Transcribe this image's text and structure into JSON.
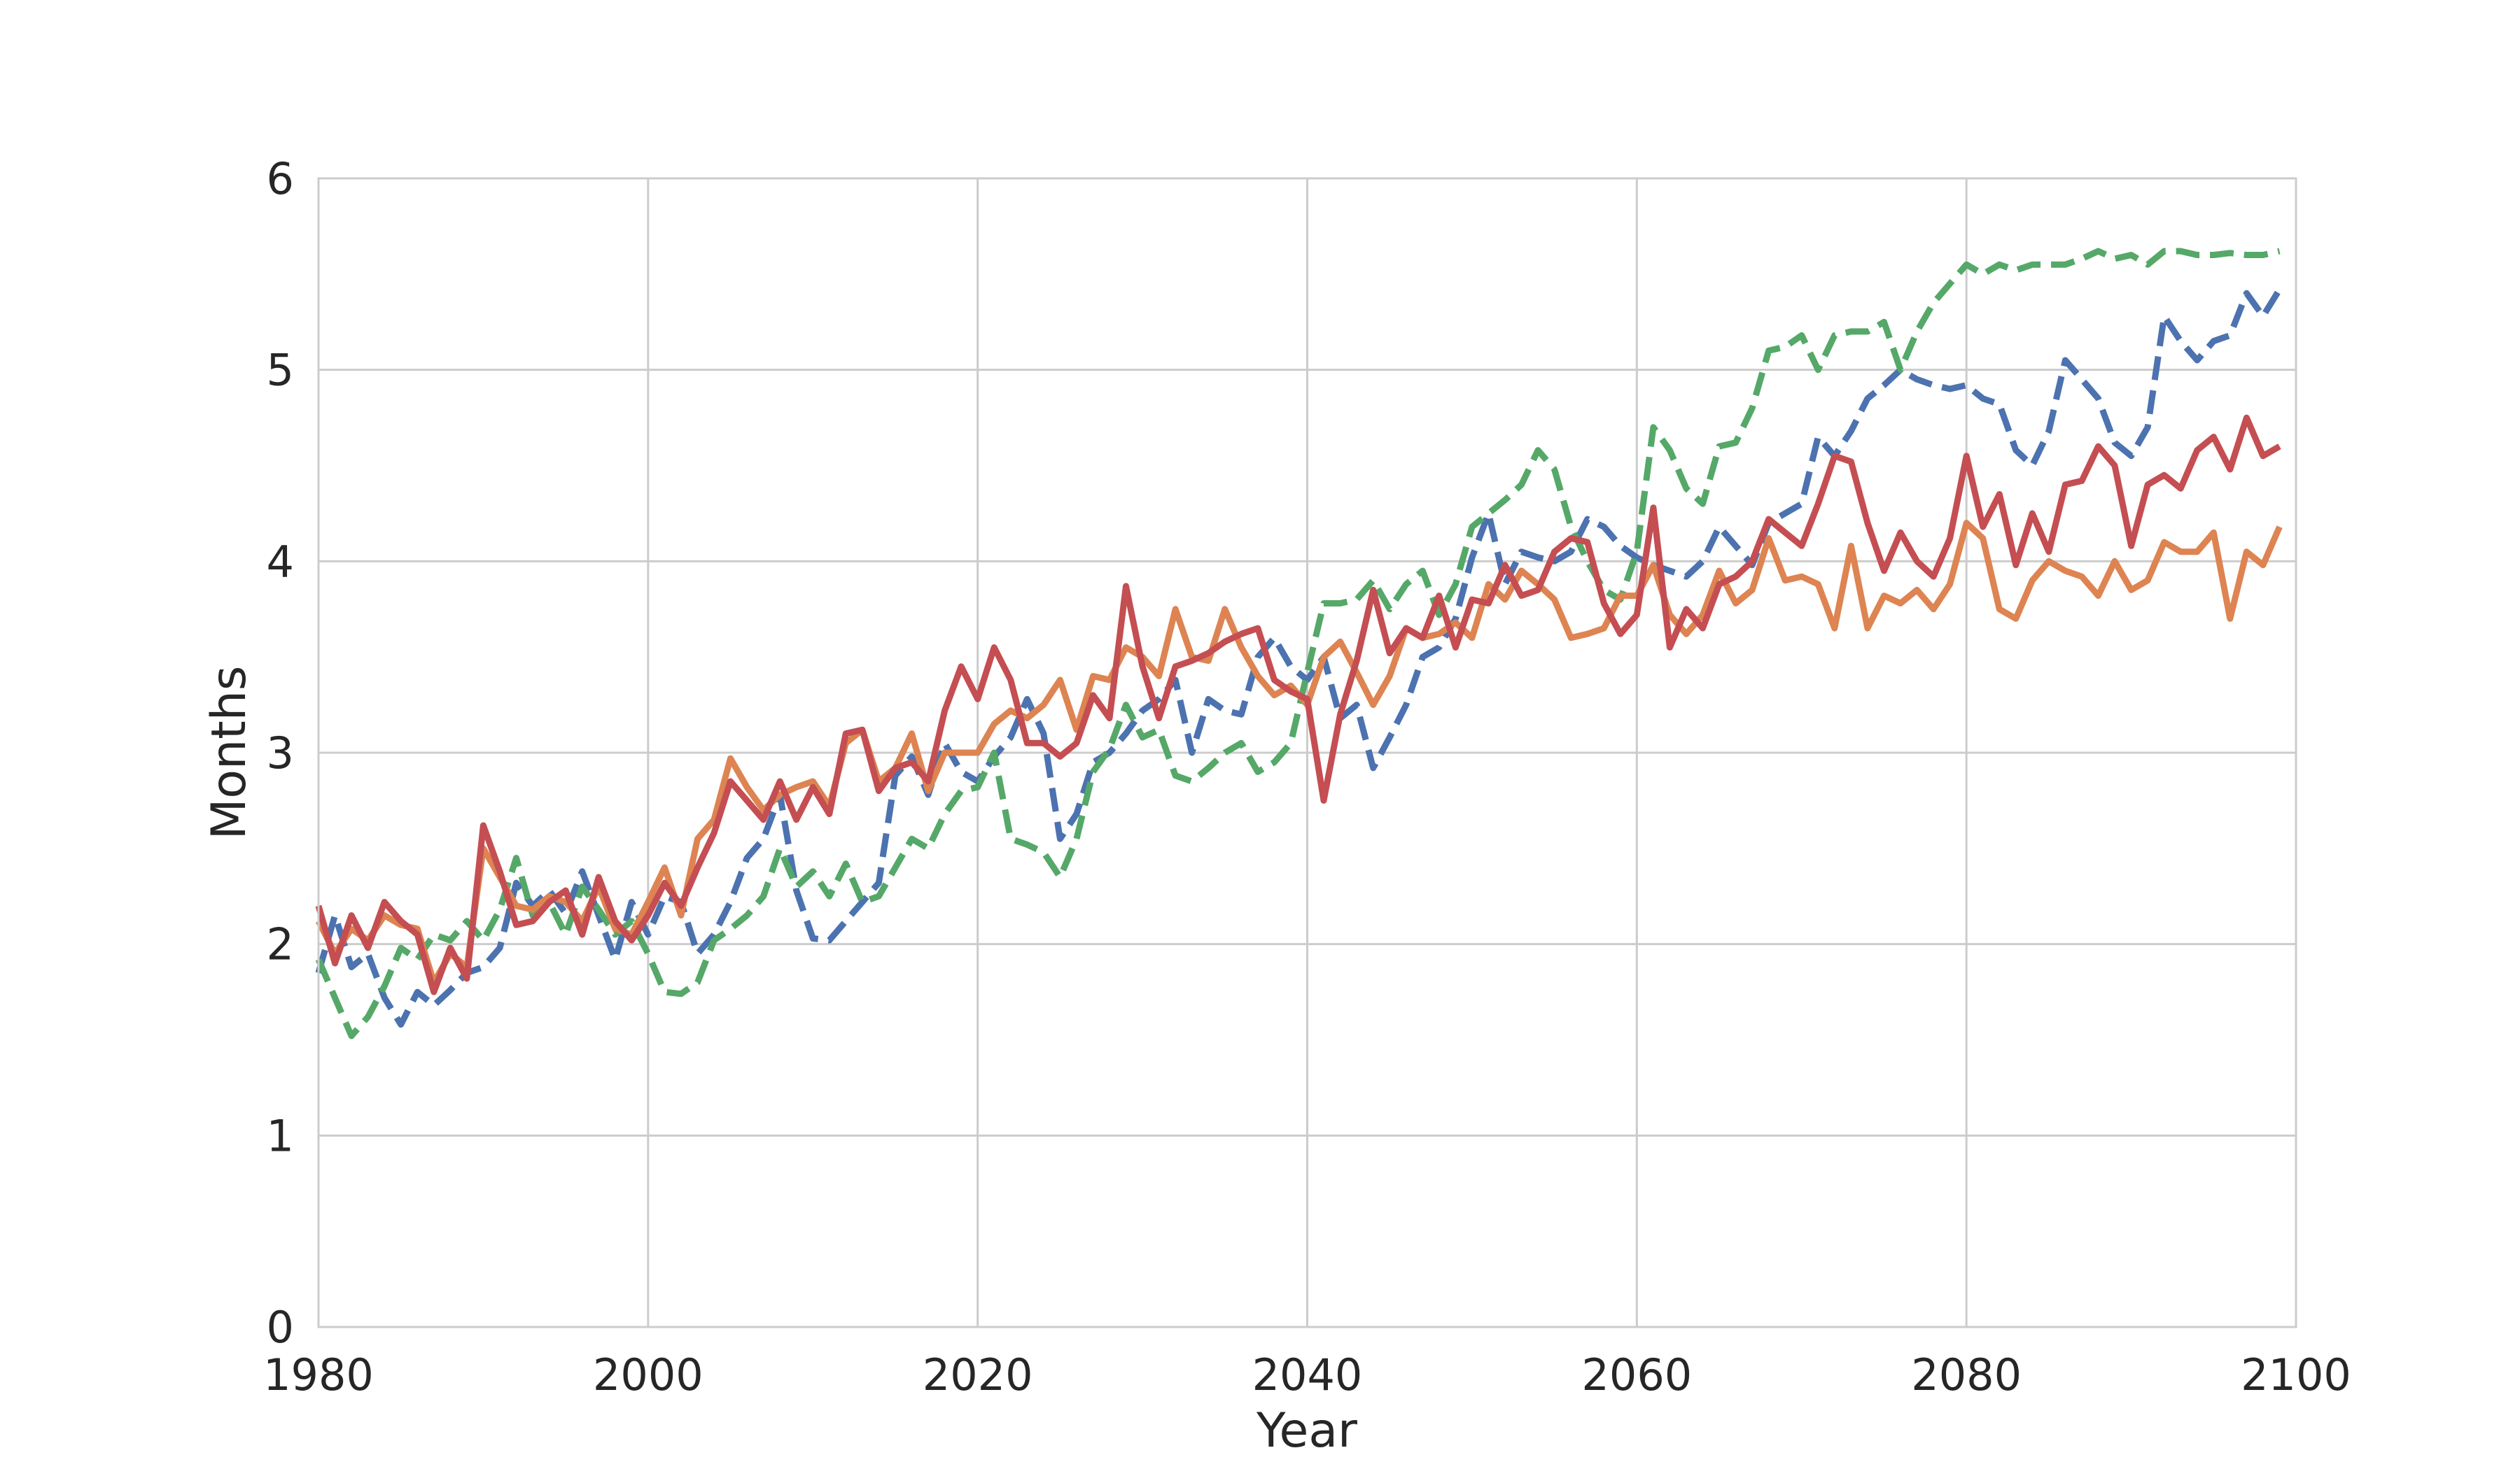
{
  "chart_data": {
    "type": "line",
    "title": "",
    "xlabel": "Year",
    "ylabel": "Months",
    "xlim": [
      1980,
      2100
    ],
    "ylim": [
      0,
      6
    ],
    "xticks": [
      1980,
      2000,
      2020,
      2040,
      2060,
      2080,
      2100
    ],
    "yticks": [
      0,
      1,
      2,
      3,
      4,
      5,
      6
    ],
    "xtick_labels": [
      "1980",
      "2000",
      "2020",
      "2040",
      "2060",
      "2080",
      "2100"
    ],
    "ytick_labels": [
      "0",
      "1",
      "2",
      "3",
      "4",
      "5",
      "6"
    ],
    "grid": true,
    "legend": "none",
    "series": [
      {
        "color": "#4c72b0",
        "style": "dashed",
        "x": [
          1980,
          1981,
          1982,
          1983,
          1984,
          1985,
          1986,
          1987,
          1988,
          1989,
          1990,
          1991,
          1992,
          1993,
          1994,
          1995,
          1996,
          1997,
          1998,
          1999,
          2000,
          2001,
          2002,
          2003,
          2004,
          2005,
          2006,
          2007,
          2008,
          2009,
          2010,
          2011,
          2012,
          2013,
          2014,
          2015,
          2016,
          2017,
          2018,
          2019,
          2020,
          2021,
          2022,
          2023,
          2024,
          2025,
          2026,
          2027,
          2028,
          2029,
          2030,
          2031,
          2032,
          2033,
          2034,
          2035,
          2036,
          2037,
          2038,
          2039,
          2040,
          2041,
          2042,
          2043,
          2044,
          2045,
          2046,
          2047,
          2048,
          2049,
          2050,
          2051,
          2052,
          2053,
          2054,
          2055,
          2056,
          2057,
          2058,
          2059,
          2060,
          2061,
          2062,
          2063,
          2064,
          2065,
          2066,
          2067,
          2068,
          2069,
          2070,
          2071,
          2072,
          2073,
          2074,
          2075,
          2076,
          2077,
          2078,
          2079,
          2080,
          2081,
          2082,
          2083,
          2084,
          2085,
          2086,
          2087,
          2088,
          2089,
          2090,
          2091,
          2092,
          2093,
          2094,
          2095,
          2096,
          2097,
          2098,
          2099
        ],
        "y": [
          1.85,
          2.15,
          1.88,
          1.95,
          1.72,
          1.58,
          1.75,
          1.68,
          1.76,
          1.85,
          1.88,
          1.98,
          2.32,
          2.2,
          2.28,
          2.16,
          2.38,
          2.15,
          1.92,
          2.22,
          2.05,
          2.25,
          2.22,
          1.95,
          2.05,
          2.22,
          2.45,
          2.55,
          2.78,
          2.28,
          2.03,
          2.02,
          2.12,
          2.22,
          2.32,
          2.88,
          2.98,
          2.78,
          3.05,
          2.9,
          2.85,
          2.98,
          3.08,
          3.28,
          3.1,
          2.55,
          2.68,
          2.95,
          3.0,
          3.1,
          3.22,
          3.28,
          3.38,
          3.0,
          3.28,
          3.22,
          3.2,
          3.5,
          3.6,
          3.45,
          3.38,
          3.5,
          3.18,
          3.25,
          2.92,
          3.08,
          3.25,
          3.5,
          3.55,
          3.7,
          4.02,
          4.25,
          3.88,
          4.05,
          4.02,
          4.0,
          4.05,
          4.22,
          4.18,
          4.08,
          4.02,
          3.98,
          3.95,
          3.92,
          4.0,
          4.18,
          4.08,
          3.98,
          4.2,
          4.25,
          4.3,
          4.65,
          4.55,
          4.68,
          4.85,
          4.92,
          5.0,
          4.95,
          4.92,
          4.9,
          4.92,
          4.85,
          4.82,
          4.58,
          4.5,
          4.68,
          5.05,
          4.95,
          4.85,
          4.62,
          4.55,
          4.7,
          5.28,
          5.15,
          5.05,
          5.15,
          5.18,
          5.4,
          5.28,
          5.42
        ]
      },
      {
        "color": "#55a868",
        "style": "dashed",
        "x": [
          1980,
          1981,
          1982,
          1983,
          1984,
          1985,
          1986,
          1987,
          1988,
          1989,
          1990,
          1991,
          1992,
          1993,
          1994,
          1995,
          1996,
          1997,
          1998,
          1999,
          2000,
          2001,
          2002,
          2003,
          2004,
          2005,
          2006,
          2007,
          2008,
          2009,
          2010,
          2011,
          2012,
          2013,
          2014,
          2015,
          2016,
          2017,
          2018,
          2019,
          2020,
          2021,
          2022,
          2023,
          2024,
          2025,
          2026,
          2027,
          2028,
          2029,
          2030,
          2031,
          2032,
          2033,
          2034,
          2035,
          2036,
          2037,
          2038,
          2039,
          2040,
          2041,
          2042,
          2043,
          2044,
          2045,
          2046,
          2047,
          2048,
          2049,
          2050,
          2051,
          2052,
          2053,
          2054,
          2055,
          2056,
          2057,
          2058,
          2059,
          2060,
          2061,
          2062,
          2063,
          2064,
          2065,
          2066,
          2067,
          2068,
          2069,
          2070,
          2071,
          2072,
          2073,
          2074,
          2075,
          2076,
          2077,
          2078,
          2079,
          2080,
          2081,
          2082,
          2083,
          2084,
          2085,
          2086,
          2087,
          2088,
          2089,
          2090,
          2091,
          2092,
          2093,
          2094,
          2095,
          2096,
          2097,
          2098,
          2099
        ],
        "y": [
          1.92,
          1.72,
          1.52,
          1.62,
          1.78,
          1.98,
          1.92,
          2.05,
          2.02,
          2.12,
          2.02,
          2.18,
          2.45,
          2.15,
          2.22,
          2.05,
          2.3,
          2.18,
          2.05,
          2.12,
          1.95,
          1.75,
          1.74,
          1.8,
          2.02,
          2.08,
          2.15,
          2.25,
          2.5,
          2.3,
          2.38,
          2.25,
          2.42,
          2.22,
          2.25,
          2.4,
          2.55,
          2.5,
          2.68,
          2.8,
          2.82,
          3.0,
          2.55,
          2.52,
          2.48,
          2.35,
          2.55,
          2.9,
          3.02,
          3.25,
          3.08,
          3.12,
          2.88,
          2.85,
          2.92,
          3.0,
          3.05,
          2.9,
          2.95,
          3.05,
          3.42,
          3.78,
          3.78,
          3.8,
          3.9,
          3.75,
          3.88,
          3.95,
          3.72,
          3.88,
          4.18,
          4.25,
          4.32,
          4.4,
          4.58,
          4.48,
          4.18,
          4.0,
          3.85,
          3.8,
          4.05,
          4.7,
          4.58,
          4.38,
          4.3,
          4.6,
          4.62,
          4.8,
          5.1,
          5.12,
          5.18,
          5.0,
          5.18,
          5.2,
          5.2,
          5.25,
          5.0,
          5.2,
          5.35,
          5.45,
          5.55,
          5.5,
          5.55,
          5.52,
          5.55,
          5.55,
          5.55,
          5.58,
          5.62,
          5.58,
          5.6,
          5.55,
          5.62,
          5.62,
          5.6,
          5.6,
          5.61,
          5.6,
          5.6,
          5.62
        ]
      },
      {
        "color": "#dd8452",
        "style": "solid",
        "x": [
          1980,
          1981,
          1982,
          1983,
          1984,
          1985,
          1986,
          1987,
          1988,
          1989,
          1990,
          1991,
          1992,
          1993,
          1994,
          1995,
          1996,
          1997,
          1998,
          1999,
          2000,
          2001,
          2002,
          2003,
          2004,
          2005,
          2006,
          2007,
          2008,
          2009,
          2010,
          2011,
          2012,
          2013,
          2014,
          2015,
          2016,
          2017,
          2018,
          2019,
          2020,
          2021,
          2022,
          2023,
          2024,
          2025,
          2026,
          2027,
          2028,
          2029,
          2030,
          2031,
          2032,
          2033,
          2034,
          2035,
          2036,
          2037,
          2038,
          2039,
          2040,
          2041,
          2042,
          2043,
          2044,
          2045,
          2046,
          2047,
          2048,
          2049,
          2050,
          2051,
          2052,
          2053,
          2054,
          2055,
          2056,
          2057,
          2058,
          2059,
          2060,
          2061,
          2062,
          2063,
          2064,
          2065,
          2066,
          2067,
          2068,
          2069,
          2070,
          2071,
          2072,
          2073,
          2074,
          2075,
          2076,
          2077,
          2078,
          2079,
          2080,
          2081,
          2082,
          2083,
          2084,
          2085,
          2086,
          2087,
          2088,
          2089,
          2090,
          2091,
          2092,
          2093,
          2094,
          2095,
          2096,
          2097,
          2098,
          2099
        ],
        "y": [
          2.12,
          1.95,
          2.08,
          2.02,
          2.15,
          2.1,
          2.08,
          1.8,
          1.95,
          1.88,
          2.5,
          2.35,
          2.2,
          2.18,
          2.25,
          2.22,
          2.12,
          2.3,
          2.08,
          2.05,
          2.22,
          2.4,
          2.15,
          2.55,
          2.65,
          2.97,
          2.82,
          2.7,
          2.78,
          2.82,
          2.85,
          2.72,
          3.05,
          3.12,
          2.85,
          2.92,
          3.1,
          2.8,
          3.0,
          3.0,
          3.0,
          3.15,
          3.22,
          3.18,
          3.25,
          3.38,
          3.12,
          3.4,
          3.38,
          3.55,
          3.5,
          3.4,
          3.75,
          3.5,
          3.48,
          3.75,
          3.55,
          3.4,
          3.3,
          3.35,
          3.25,
          3.5,
          3.58,
          3.42,
          3.25,
          3.4,
          3.65,
          3.6,
          3.62,
          3.68,
          3.6,
          3.88,
          3.8,
          3.95,
          3.88,
          3.8,
          3.6,
          3.62,
          3.65,
          3.82,
          3.82,
          3.98,
          3.72,
          3.62,
          3.72,
          3.95,
          3.78,
          3.85,
          4.12,
          3.9,
          3.92,
          3.88,
          3.65,
          4.08,
          3.65,
          3.82,
          3.78,
          3.85,
          3.75,
          3.88,
          4.2,
          4.12,
          3.75,
          3.7,
          3.9,
          4.0,
          3.95,
          3.92,
          3.82,
          4.0,
          3.85,
          3.9,
          4.1,
          4.05,
          4.05,
          4.15,
          3.7,
          4.05,
          3.98,
          4.18
        ]
      },
      {
        "color": "#c44e52",
        "style": "solid",
        "x": [
          1980,
          1981,
          1982,
          1983,
          1984,
          1985,
          1986,
          1987,
          1988,
          1989,
          1990,
          1991,
          1992,
          1993,
          1994,
          1995,
          1996,
          1997,
          1998,
          1999,
          2000,
          2001,
          2002,
          2003,
          2004,
          2005,
          2006,
          2007,
          2008,
          2009,
          2010,
          2011,
          2012,
          2013,
          2014,
          2015,
          2016,
          2017,
          2018,
          2019,
          2020,
          2021,
          2022,
          2023,
          2024,
          2025,
          2026,
          2027,
          2028,
          2029,
          2030,
          2031,
          2032,
          2033,
          2034,
          2035,
          2036,
          2037,
          2038,
          2039,
          2040,
          2041,
          2042,
          2043,
          2044,
          2045,
          2046,
          2047,
          2048,
          2049,
          2050,
          2051,
          2052,
          2053,
          2054,
          2055,
          2056,
          2057,
          2058,
          2059,
          2060,
          2061,
          2062,
          2063,
          2064,
          2065,
          2066,
          2067,
          2068,
          2069,
          2070,
          2071,
          2072,
          2073,
          2074,
          2075,
          2076,
          2077,
          2078,
          2079,
          2080,
          2081,
          2082,
          2083,
          2084,
          2085,
          2086,
          2087,
          2088,
          2089,
          2090,
          2091,
          2092,
          2093,
          2094,
          2095,
          2096,
          2097,
          2098,
          2099
        ],
        "y": [
          2.2,
          1.9,
          2.15,
          1.98,
          2.22,
          2.12,
          2.05,
          1.75,
          1.98,
          1.82,
          2.62,
          2.38,
          2.1,
          2.12,
          2.22,
          2.28,
          2.05,
          2.35,
          2.12,
          2.02,
          2.15,
          2.32,
          2.2,
          2.4,
          2.58,
          2.85,
          2.75,
          2.65,
          2.85,
          2.65,
          2.82,
          2.68,
          3.1,
          3.12,
          2.8,
          2.92,
          2.95,
          2.85,
          3.22,
          3.45,
          3.28,
          3.55,
          3.38,
          3.05,
          3.05,
          2.98,
          3.05,
          3.3,
          3.18,
          3.87,
          3.45,
          3.18,
          3.45,
          3.48,
          3.52,
          3.58,
          3.62,
          3.65,
          3.38,
          3.32,
          3.28,
          2.75,
          3.2,
          3.48,
          3.85,
          3.52,
          3.65,
          3.6,
          3.82,
          3.55,
          3.8,
          3.78,
          3.98,
          3.82,
          3.85,
          4.05,
          4.12,
          4.1,
          3.78,
          3.62,
          3.72,
          4.28,
          3.55,
          3.75,
          3.65,
          3.88,
          3.92,
          4.0,
          4.22,
          4.15,
          4.08,
          4.3,
          4.55,
          4.52,
          4.2,
          3.95,
          4.15,
          4.0,
          3.92,
          4.12,
          4.55,
          4.18,
          4.35,
          3.98,
          4.25,
          4.05,
          4.4,
          4.42,
          4.6,
          4.5,
          4.08,
          4.4,
          4.45,
          4.38,
          4.58,
          4.65,
          4.48,
          4.75,
          4.55,
          4.6
        ]
      }
    ]
  }
}
